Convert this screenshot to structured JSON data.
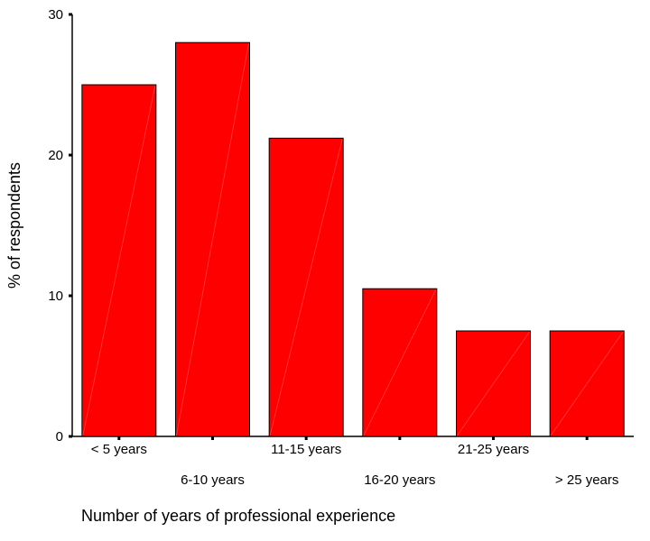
{
  "chart_data": {
    "type": "bar",
    "title": "",
    "xlabel": "Number of years of professional experience",
    "ylabel": "% of respondents",
    "categories": [
      "< 5 years",
      "6-10 years",
      "11-15 years",
      "16-20 years",
      "21-25 years",
      "> 25 years"
    ],
    "values": [
      25.0,
      28.0,
      21.2,
      10.5,
      7.5,
      7.5
    ],
    "ylim": [
      0,
      30
    ],
    "yticks": [
      0,
      10,
      20,
      30
    ],
    "grid": false,
    "legend": "none",
    "bar_color": "#ff0000",
    "bar_border_color": "#000000",
    "label_layout": "staggered"
  }
}
